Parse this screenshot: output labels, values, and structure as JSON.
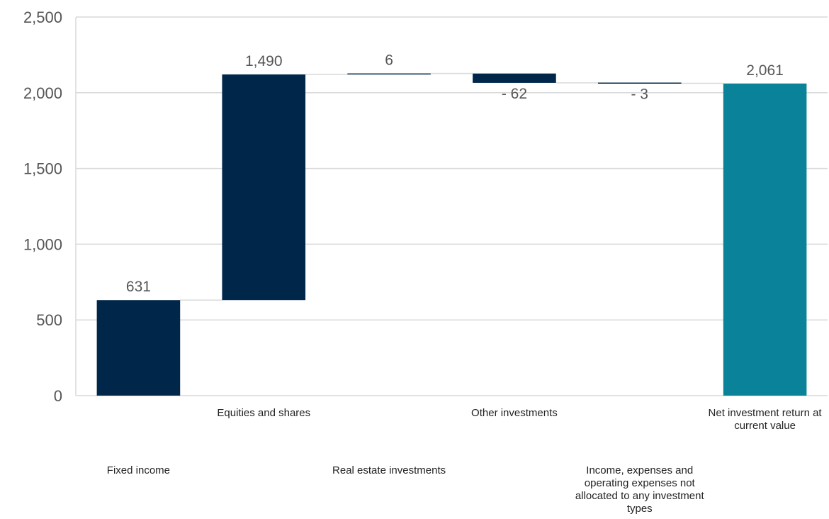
{
  "chart_data": {
    "type": "bar",
    "subtype": "waterfall",
    "title": "",
    "xlabel": "",
    "ylabel": "",
    "ylim": [
      0,
      2500
    ],
    "yticks": [
      0,
      500,
      1000,
      1500,
      2000,
      2500
    ],
    "ytick_labels": [
      "0",
      "500",
      "1,000",
      "1,500",
      "2,000",
      "2,500"
    ],
    "grid": true,
    "legend": "none",
    "colors": {
      "step": "#002749",
      "total": "#0a8299",
      "connector": "#d9d9d9"
    },
    "categories": [
      "Fixed income",
      "Equities and shares",
      "Real estate investments",
      "Other investments",
      "Income, expenses and operating expenses not allocated to any investment types",
      "Net investment return at current value"
    ],
    "values": [
      631,
      1490,
      6,
      -62,
      -3,
      2061
    ],
    "labels": [
      "631",
      "1,490",
      "6",
      "- 62",
      "- 3",
      "2,061"
    ],
    "is_total": [
      false,
      false,
      false,
      false,
      false,
      true
    ]
  }
}
